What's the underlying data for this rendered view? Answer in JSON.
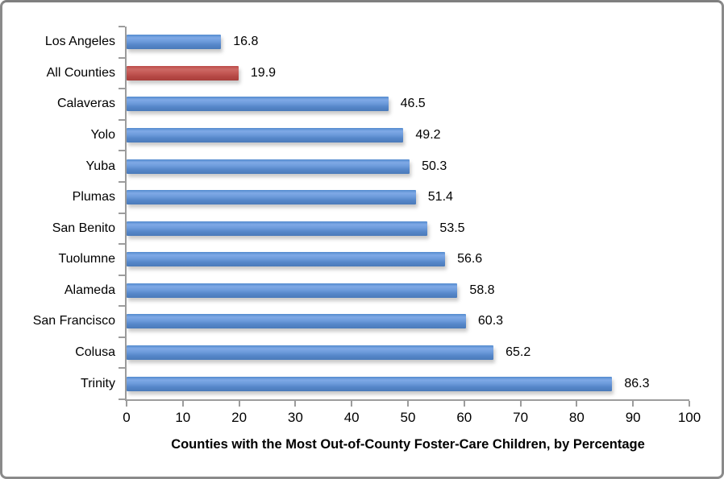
{
  "window": {
    "background": "#ffffff",
    "border_color": "#8a8a8a"
  },
  "chart_data": {
    "type": "bar",
    "orientation": "horizontal",
    "title": "",
    "xlabel": "Counties with the Most Out-of-County Foster-Care Children, by Percentage",
    "ylabel": "",
    "categories": [
      "Los Angeles",
      "All Counties",
      "Calaveras",
      "Yolo",
      "Yuba",
      "Plumas",
      "San Benito",
      "Tuolumne",
      "Alameda",
      "San Francisco",
      "Colusa",
      "Trinity"
    ],
    "values": [
      16.8,
      19.9,
      46.5,
      49.2,
      50.3,
      51.4,
      53.5,
      56.6,
      58.8,
      60.3,
      65.2,
      86.3
    ],
    "value_labels": [
      "16.8",
      "19.9",
      "46.5",
      "49.2",
      "50.3",
      "51.4",
      "53.5",
      "56.6",
      "58.8",
      "60.3",
      "65.2",
      "86.3"
    ],
    "highlight_category": "All Counties",
    "xlim": [
      0,
      100
    ],
    "xticks": [
      0,
      10,
      20,
      30,
      40,
      50,
      60,
      70,
      80,
      90,
      100
    ],
    "grid": false,
    "legend": null,
    "colors": {
      "bar": "#5b8bd0",
      "highlight_bar": "#be4b48",
      "axis": "#9c9c9c",
      "text": "#000000"
    }
  }
}
